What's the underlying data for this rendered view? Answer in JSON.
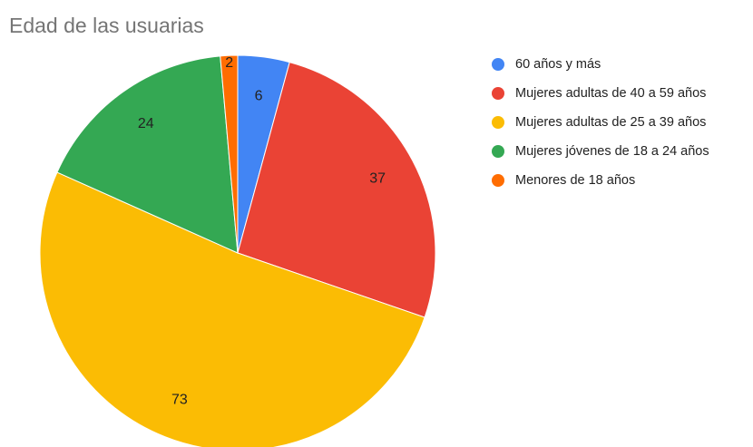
{
  "chart_data": {
    "type": "pie",
    "title": "Edad de las usuarias",
    "categories": [
      "60 años y más",
      "Mujeres adultas de 40 a 59 años",
      "Mujeres adultas de 25 a 39 años",
      "Mujeres jóvenes de 18 a 24 años",
      "Menores de 18 años"
    ],
    "values": [
      6,
      37,
      73,
      24,
      2
    ],
    "colors": [
      "#4285f4",
      "#ea4335",
      "#fbbc04",
      "#34a853",
      "#ff6d01"
    ],
    "legend": "right"
  }
}
